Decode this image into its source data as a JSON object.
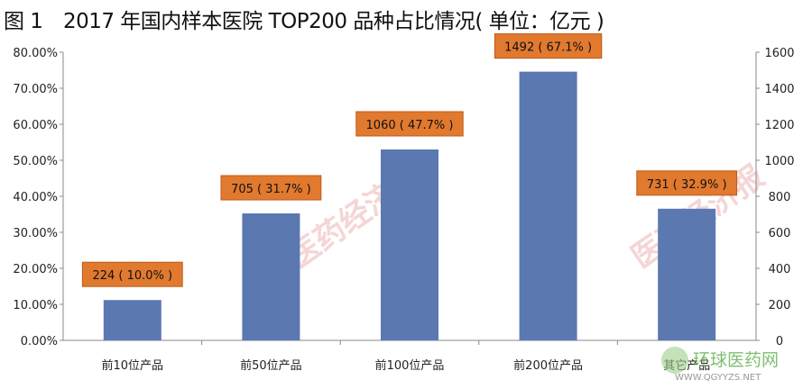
{
  "chart_data": {
    "type": "bar",
    "title": "图 1　2017 年国内样本医院 TOP200 品种占比情况( 单位：亿元 )",
    "categories": [
      "前10位产品",
      "前50位产品",
      "前100位产品",
      "前200位产品",
      "其它产品"
    ],
    "values": [
      224,
      705,
      1060,
      1492,
      731
    ],
    "shares_pct": [
      10.0,
      31.7,
      47.7,
      67.1,
      32.9
    ],
    "data_labels": [
      "224 ( 10.0% )",
      "705 ( 31.7% )",
      "1060 ( 47.7% )",
      "1492 ( 67.1% )",
      "731 ( 32.9% )"
    ],
    "left_axis": {
      "range": [
        0,
        80
      ],
      "ticks": [
        "0.00%",
        "10.00%",
        "20.00%",
        "30.00%",
        "40.00%",
        "50.00%",
        "60.00%",
        "70.00%",
        "80.00%"
      ]
    },
    "right_axis": {
      "range": [
        0,
        1600
      ],
      "ticks": [
        "0",
        "200",
        "400",
        "600",
        "800",
        "1000",
        "1200",
        "1400",
        "1600"
      ]
    },
    "grid": false,
    "legend": "none",
    "colors": {
      "bar": "#5b78b1",
      "label_box": "#e1792f",
      "label_border": "#c05a14"
    }
  },
  "watermark": "医药经济报",
  "logo": {
    "name": "环球医药网",
    "url_text": "WWW.QGYYZS.NET"
  }
}
